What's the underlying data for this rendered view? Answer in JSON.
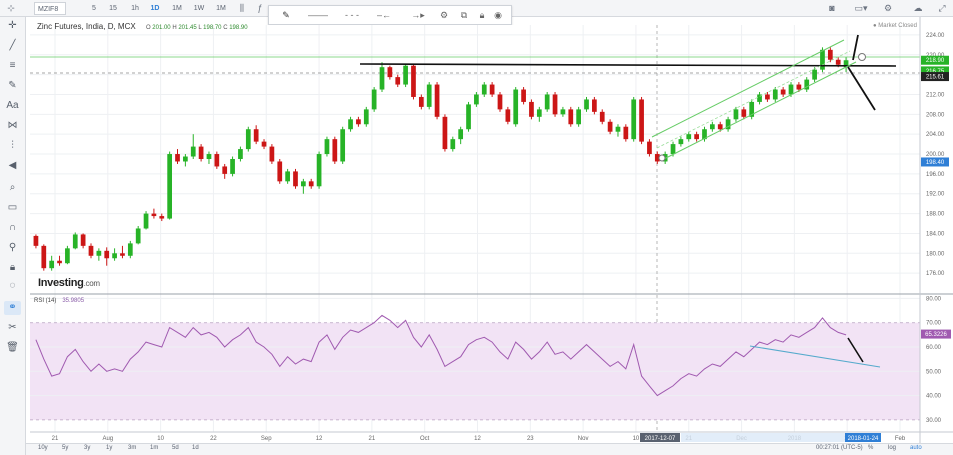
{
  "toolbar": {
    "symbol": "MZIF8",
    "intervals": [
      "5",
      "15",
      "1h",
      "1D",
      "1M",
      "1W",
      "1M"
    ],
    "active_interval_index": 3
  },
  "legend": {
    "title": "Zinc Futures, India, D, MCX",
    "open_label": "O",
    "open": "201.00",
    "high_label": "H",
    "high": "201.45",
    "low_label": "L",
    "low": "198.70",
    "close_label": "C",
    "close": "198.90"
  },
  "status": {
    "market": "Market Closed"
  },
  "logo": {
    "brand": "Investing",
    "suffix": ".com"
  },
  "rsi": {
    "label": "RSI (14)",
    "value": "35.9805"
  },
  "bottom": {
    "ranges": [
      "10y",
      "5y",
      "3y",
      "1y",
      "3m",
      "1m",
      "5d",
      "1d"
    ],
    "clock": "00:27:01 (UTC-5)",
    "opts": [
      "%",
      "log",
      "auto"
    ]
  },
  "colors": {
    "up": "#27b327",
    "down": "#cc1616",
    "rsi_line": "#a05ab0",
    "rsi_band": "#f2e3f5",
    "channel": "#66cc66",
    "grid": "#eef0f3"
  },
  "chart_data": [
    {
      "type": "candlestick",
      "title": "Zinc Futures, India, D, MCX",
      "ylim": [
        172,
        226
      ],
      "y_ticks": [
        176.0,
        180.0,
        184.0,
        188.0,
        192.0,
        196.0,
        200.0,
        204.0,
        208.0,
        212.0,
        216.0,
        220.0,
        224.0
      ],
      "x_ticks": [
        "21",
        "Aug",
        "10",
        "22",
        "Sep",
        "12",
        "21",
        "Oct",
        "12",
        "23",
        "Nov",
        "10",
        "21",
        "Dec",
        "2018",
        "10",
        "Feb"
      ],
      "price_tags": [
        {
          "label": "218.90",
          "value": 218.9,
          "color": "#27b327"
        },
        {
          "label": "216.75",
          "value": 216.75,
          "color": "#27b327"
        },
        {
          "label": "215.61",
          "value": 215.61,
          "color": "#222222"
        },
        {
          "label": "198.40",
          "value": 198.4,
          "color": "#2f7fd6"
        }
      ],
      "crosshair_date": "2017-12-07",
      "last_date": "2018-01-24",
      "candles": [
        [
          183.5,
          183.8,
          181.0,
          181.5
        ],
        [
          181.5,
          181.8,
          176.5,
          177.0
        ],
        [
          177.0,
          179.5,
          176.5,
          178.5
        ],
        [
          178.5,
          179.5,
          177.5,
          178.0
        ],
        [
          178.0,
          181.5,
          177.8,
          181.0
        ],
        [
          181.0,
          184.2,
          180.8,
          183.8
        ],
        [
          183.8,
          184.0,
          181.0,
          181.5
        ],
        [
          181.5,
          182.0,
          179.0,
          179.5
        ],
        [
          179.5,
          181.0,
          178.5,
          180.5
        ],
        [
          180.5,
          181.2,
          177.5,
          179.0
        ],
        [
          179.0,
          181.0,
          178.5,
          180.0
        ],
        [
          180.0,
          181.5,
          179.0,
          179.5
        ],
        [
          179.5,
          182.5,
          179.0,
          182.0
        ],
        [
          182.0,
          185.5,
          181.8,
          185.0
        ],
        [
          185.0,
          188.5,
          184.8,
          188.0
        ],
        [
          188.0,
          189.0,
          187.0,
          187.5
        ],
        [
          187.5,
          188.0,
          186.5,
          187.0
        ],
        [
          187.0,
          200.5,
          186.8,
          200.0
        ],
        [
          200.0,
          201.0,
          198.0,
          198.5
        ],
        [
          198.5,
          200.0,
          197.5,
          199.5
        ],
        [
          199.5,
          204.0,
          199.0,
          201.5
        ],
        [
          201.5,
          202.0,
          198.5,
          199.0
        ],
        [
          199.0,
          200.5,
          198.0,
          200.0
        ],
        [
          200.0,
          200.5,
          197.0,
          197.5
        ],
        [
          197.5,
          198.0,
          195.0,
          196.0
        ],
        [
          196.0,
          199.5,
          195.5,
          199.0
        ],
        [
          199.0,
          201.5,
          198.5,
          201.0
        ],
        [
          201.0,
          205.5,
          200.5,
          205.0
        ],
        [
          205.0,
          205.8,
          202.0,
          202.5
        ],
        [
          202.5,
          203.0,
          201.0,
          201.5
        ],
        [
          201.5,
          202.0,
          198.0,
          198.5
        ],
        [
          198.5,
          199.0,
          194.0,
          194.5
        ],
        [
          194.5,
          197.0,
          194.0,
          196.5
        ],
        [
          196.5,
          197.0,
          193.0,
          193.5
        ],
        [
          193.5,
          195.0,
          192.0,
          194.5
        ],
        [
          194.5,
          195.0,
          193.0,
          193.5
        ],
        [
          193.5,
          200.5,
          193.0,
          200.0
        ],
        [
          200.0,
          203.5,
          199.5,
          203.0
        ],
        [
          203.0,
          203.5,
          198.0,
          198.5
        ],
        [
          198.5,
          205.5,
          198.0,
          205.0
        ],
        [
          205.0,
          207.5,
          204.5,
          207.0
        ],
        [
          207.0,
          207.5,
          205.5,
          206.0
        ],
        [
          206.0,
          209.5,
          205.5,
          209.0
        ],
        [
          209.0,
          213.5,
          208.5,
          213.0
        ],
        [
          213.0,
          218.5,
          212.5,
          217.5
        ],
        [
          217.5,
          217.8,
          215.0,
          215.5
        ],
        [
          215.5,
          216.0,
          213.5,
          214.0
        ],
        [
          214.0,
          218.2,
          213.5,
          217.8
        ],
        [
          217.8,
          218.0,
          211.0,
          211.5
        ],
        [
          211.5,
          212.0,
          209.0,
          209.5
        ],
        [
          209.5,
          214.5,
          209.0,
          214.0
        ],
        [
          214.0,
          214.5,
          207.0,
          207.5
        ],
        [
          207.5,
          208.0,
          200.5,
          201.0
        ],
        [
          201.0,
          203.5,
          200.5,
          203.0
        ],
        [
          203.0,
          205.5,
          202.0,
          205.0
        ],
        [
          205.0,
          210.5,
          204.5,
          210.0
        ],
        [
          210.0,
          212.5,
          209.5,
          212.0
        ],
        [
          212.0,
          214.5,
          211.5,
          214.0
        ],
        [
          214.0,
          214.5,
          211.5,
          212.0
        ],
        [
          212.0,
          212.5,
          208.5,
          209.0
        ],
        [
          209.0,
          209.5,
          206.0,
          206.5
        ],
        [
          206.0,
          213.5,
          205.5,
          213.0
        ],
        [
          213.0,
          213.5,
          210.0,
          210.5
        ],
        [
          210.5,
          211.0,
          207.0,
          207.5
        ],
        [
          207.5,
          209.5,
          206.5,
          209.0
        ],
        [
          209.0,
          212.5,
          208.5,
          212.0
        ],
        [
          212.0,
          212.5,
          207.5,
          208.0
        ],
        [
          208.0,
          209.5,
          207.5,
          209.0
        ],
        [
          209.0,
          209.5,
          205.5,
          206.0
        ],
        [
          206.0,
          209.5,
          205.5,
          209.0
        ],
        [
          209.0,
          211.5,
          208.5,
          211.0
        ],
        [
          211.0,
          211.5,
          208.0,
          208.5
        ],
        [
          208.5,
          209.0,
          206.0,
          206.5
        ],
        [
          206.5,
          207.0,
          204.0,
          204.5
        ],
        [
          204.5,
          206.0,
          203.5,
          205.5
        ],
        [
          205.5,
          206.0,
          202.5,
          203.0
        ],
        [
          203.0,
          211.5,
          202.5,
          211.0
        ],
        [
          211.0,
          211.5,
          202.0,
          202.5
        ],
        [
          202.5,
          203.0,
          199.5,
          200.0
        ],
        [
          200.0,
          200.5,
          198.0,
          198.5
        ],
        [
          198.5,
          200.5,
          198.0,
          200.0
        ],
        [
          200.0,
          202.5,
          199.5,
          202.0
        ],
        [
          202.0,
          203.5,
          201.5,
          203.0
        ],
        [
          203.0,
          204.5,
          202.5,
          204.0
        ],
        [
          204.0,
          204.5,
          202.5,
          203.0
        ],
        [
          203.0,
          205.5,
          202.5,
          205.0
        ],
        [
          205.0,
          206.5,
          204.5,
          206.0
        ],
        [
          206.0,
          206.5,
          204.5,
          205.0
        ],
        [
          205.0,
          207.5,
          204.5,
          207.0
        ],
        [
          207.0,
          209.5,
          206.5,
          209.0
        ],
        [
          209.0,
          209.5,
          207.0,
          207.5
        ],
        [
          207.5,
          211.0,
          207.0,
          210.5
        ],
        [
          210.5,
          212.5,
          210.0,
          212.0
        ],
        [
          212.0,
          212.5,
          210.5,
          211.0
        ],
        [
          211.0,
          213.5,
          210.5,
          213.0
        ],
        [
          213.0,
          213.5,
          211.5,
          212.0
        ],
        [
          212.0,
          214.5,
          211.5,
          214.0
        ],
        [
          214.0,
          214.5,
          212.5,
          213.0
        ],
        [
          213.0,
          215.5,
          212.5,
          215.0
        ],
        [
          215.0,
          217.5,
          214.5,
          217.0
        ],
        [
          217.0,
          221.5,
          216.5,
          221.0
        ],
        [
          221.0,
          221.5,
          218.5,
          219.0
        ],
        [
          219.0,
          219.5,
          217.5,
          218.0
        ],
        [
          217.5,
          219.5,
          216.5,
          218.9
        ]
      ]
    },
    {
      "type": "line",
      "title": "RSI (14)",
      "ylim": [
        25,
        81
      ],
      "y_ticks": [
        30.0,
        40.0,
        50.0,
        60.0,
        70.0,
        80.0
      ],
      "band": [
        30,
        70
      ],
      "y_tags": [
        {
          "label": "65.3226",
          "value": 65.3226,
          "color": "#a05ab0"
        }
      ],
      "series": [
        {
          "values": [
            63,
            55,
            48,
            49,
            56,
            59,
            54,
            50,
            53,
            50,
            51,
            50,
            55,
            58,
            62,
            61,
            60,
            68,
            66,
            64,
            68,
            65,
            66,
            64,
            60,
            63,
            65,
            68,
            62,
            60,
            57,
            52,
            56,
            53,
            55,
            54,
            62,
            65,
            59,
            64,
            67,
            66,
            68,
            70,
            73,
            71,
            68,
            71,
            64,
            60,
            65,
            59,
            52,
            54,
            56,
            61,
            63,
            64,
            62,
            58,
            55,
            62,
            59,
            55,
            58,
            62,
            57,
            58,
            55,
            58,
            61,
            58,
            55,
            52,
            54,
            51,
            61,
            48,
            44,
            40,
            42,
            44,
            47,
            49,
            48,
            51,
            53,
            52,
            55,
            58,
            56,
            59,
            62,
            61,
            63,
            62,
            65,
            64,
            66,
            68,
            72,
            68,
            66,
            65
          ]
        }
      ]
    }
  ]
}
